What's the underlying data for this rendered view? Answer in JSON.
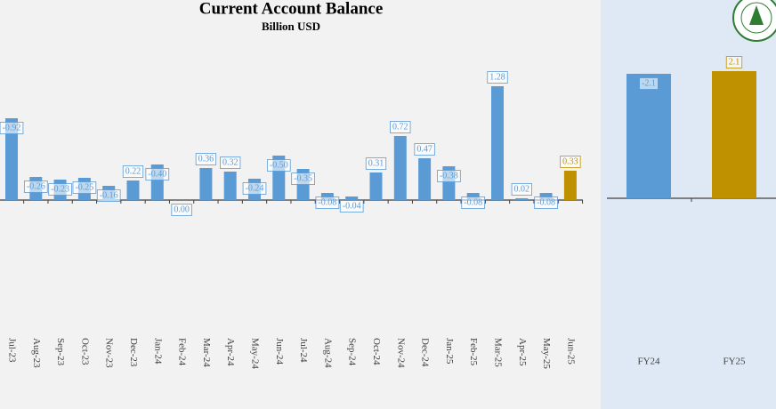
{
  "chart_data": [
    {
      "type": "bar",
      "title": "Current Account Balance",
      "subtitle": "Billion USD",
      "categories": [
        "Jul-23",
        "Aug-23",
        "Sep-23",
        "Oct-23",
        "Nov-23",
        "Dec-23",
        "Jan-24",
        "Feb-24",
        "Mar-24",
        "Apr-24",
        "May-24",
        "Jun-24",
        "Jul-24",
        "Aug-24",
        "Sep-24",
        "Oct-24",
        "Nov-24",
        "Dec-24",
        "Jan-25",
        "Feb-25",
        "Mar-25",
        "Apr-25",
        "May-25",
        "Jun-25"
      ],
      "values": [
        -0.92,
        -0.26,
        -0.23,
        -0.25,
        -0.16,
        0.22,
        -0.4,
        0.0,
        0.36,
        0.32,
        -0.24,
        -0.5,
        -0.35,
        -0.08,
        -0.04,
        0.31,
        0.72,
        0.47,
        -0.38,
        -0.08,
        1.28,
        0.02,
        -0.08,
        0.33
      ],
      "value_labels": [
        "-0.92",
        "-0.26",
        "-0.23",
        "-0.25",
        "-0.16",
        "0.22",
        "-0.40",
        "0.00",
        "0.36",
        "0.32",
        "-0.24",
        "-0.50",
        "-0.35",
        "-0.08",
        "-0.04",
        "0.31",
        "0.72",
        "0.47",
        "-0.38",
        "-0.08",
        "1.28",
        "0.02",
        "-0.08",
        "0.33"
      ],
      "colors": [
        "#5b9bd5",
        "#5b9bd5",
        "#5b9bd5",
        "#5b9bd5",
        "#5b9bd5",
        "#5b9bd5",
        "#5b9bd5",
        "#5b9bd5",
        "#5b9bd5",
        "#5b9bd5",
        "#5b9bd5",
        "#5b9bd5",
        "#5b9bd5",
        "#5b9bd5",
        "#5b9bd5",
        "#5b9bd5",
        "#5b9bd5",
        "#5b9bd5",
        "#5b9bd5",
        "#5b9bd5",
        "#5b9bd5",
        "#5b9bd5",
        "#5b9bd5",
        "#bf9000"
      ]
    },
    {
      "type": "bar",
      "categories": [
        "FY24",
        "FY25"
      ],
      "values": [
        -2.1,
        2.1
      ],
      "colors": [
        "#5b9bd5",
        "#bf9000"
      ]
    }
  ]
}
